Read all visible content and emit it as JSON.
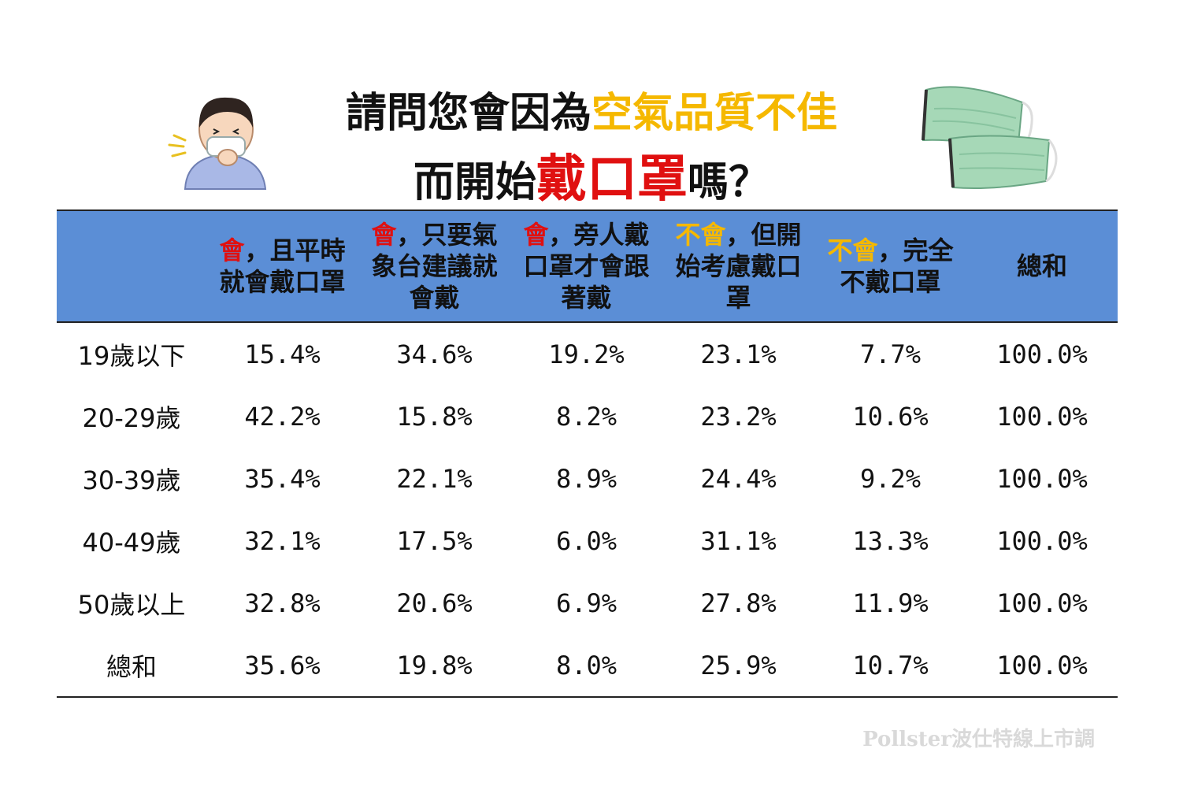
{
  "title": {
    "line1_prefix": "請問您會因為",
    "line1_highlight": "空氣品質不佳",
    "line2_prefix": "而開始",
    "line2_highlight": "戴口罩",
    "line2_suffix": "嗎？"
  },
  "header": {
    "col1": {
      "keyword": "會",
      "text": "，且平時就會戴口罩"
    },
    "col2": {
      "keyword": "會",
      "text": "，只要氣象台建議就會戴"
    },
    "col3": {
      "keyword": "會",
      "text": "，旁人戴口罩才會跟著戴"
    },
    "col4": {
      "keyword": "不會",
      "text": "，但開始考慮戴口罩"
    },
    "col5": {
      "keyword": "不會",
      "text": "，完全不戴口罩"
    },
    "col6": {
      "keyword": "",
      "text": "總和"
    }
  },
  "colors": {
    "highlight_red": "#e01010",
    "highlight_yellow": "#f5b800",
    "header_bg": "#5b8ed6"
  },
  "chart_data": {
    "type": "table",
    "columns": [
      "會，且平時就會戴口罩",
      "會，只要氣象台建議就會戴",
      "會，旁人戴口罩才會跟著戴",
      "不會，但開始考慮戴口罩",
      "不會，完全不戴口罩",
      "總和"
    ],
    "rows": [
      {
        "label": "19歲以下",
        "values": [
          "15.4%",
          "34.6%",
          "19.2%",
          "23.1%",
          "7.7%",
          "100.0%"
        ],
        "highlight": [
          0,
          1,
          2
        ]
      },
      {
        "label": "20-29歲",
        "values": [
          "42.2%",
          "15.8%",
          "8.2%",
          "23.2%",
          "10.6%",
          "100.0%"
        ],
        "highlight": [
          0
        ]
      },
      {
        "label": "30-39歲",
        "values": [
          "35.4%",
          "22.1%",
          "8.9%",
          "24.4%",
          "9.2%",
          "100.0%"
        ],
        "highlight": []
      },
      {
        "label": "40-49歲",
        "values": [
          "32.1%",
          "17.5%",
          "6.0%",
          "31.1%",
          "13.3%",
          "100.0%"
        ],
        "highlight": [
          3,
          4
        ]
      },
      {
        "label": "50歲以上",
        "values": [
          "32.8%",
          "20.6%",
          "6.9%",
          "27.8%",
          "11.9%",
          "100.0%"
        ],
        "highlight": []
      },
      {
        "label": "總和",
        "values": [
          "35.6%",
          "19.8%",
          "8.0%",
          "25.9%",
          "10.7%",
          "100.0%"
        ],
        "highlight": []
      }
    ]
  },
  "footer": {
    "source": "Pollster波仕特線上市調"
  },
  "icons": {
    "left": "sick-person-icon",
    "right": "face-mask-icon"
  }
}
